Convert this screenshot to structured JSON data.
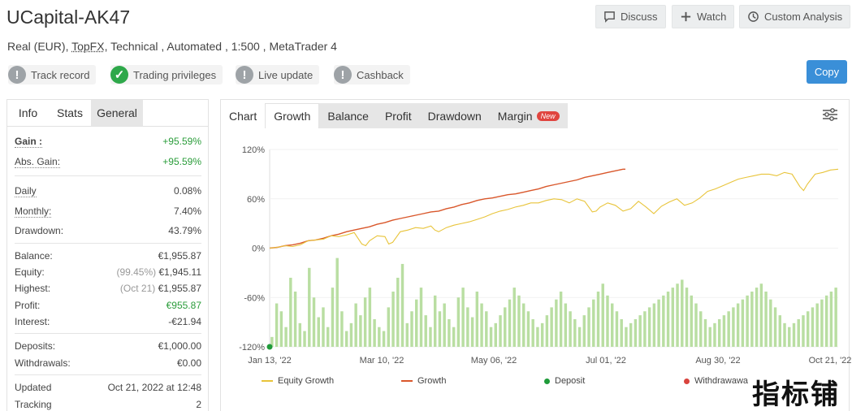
{
  "header": {
    "title": "UCapital-AK47",
    "account_type": "Real (EUR),",
    "broker": "TopFX",
    "details": ", Technical , Automated , 1:500 , MetaTrader 4"
  },
  "actions": {
    "discuss": "Discuss",
    "watch": "Watch",
    "custom_analysis": "Custom Analysis",
    "copy": "Copy"
  },
  "badges": [
    {
      "label": "Track record",
      "status": "grey"
    },
    {
      "label": "Trading privileges",
      "status": "green"
    },
    {
      "label": "Live update",
      "status": "grey"
    },
    {
      "label": "Cashback",
      "status": "grey"
    }
  ],
  "left_tabs": [
    "Info",
    "Stats",
    "General"
  ],
  "stats": {
    "gain": {
      "label": "Gain :",
      "value": "+95.59%"
    },
    "abs_gain": {
      "label": "Abs. Gain:",
      "value": "+95.59%"
    },
    "daily": {
      "label": "Daily",
      "value": "0.08%"
    },
    "monthly": {
      "label": "Monthly:",
      "value": "7.40%"
    },
    "drawdown": {
      "label": "Drawdown:",
      "value": "43.79%"
    },
    "balance": {
      "label": "Balance:",
      "value": "€1,955.87"
    },
    "equity": {
      "label": "Equity:",
      "note": "(99.45%)",
      "value": "€1,945.11"
    },
    "highest": {
      "label": "Highest:",
      "note": "(Oct 21)",
      "value": "€1,955.87"
    },
    "profit": {
      "label": "Profit:",
      "value": "€955.87"
    },
    "interest": {
      "label": "Interest:",
      "value": "-€21.94"
    },
    "deposits": {
      "label": "Deposits:",
      "value": "€1,000.00"
    },
    "withdrawals": {
      "label": "Withdrawals:",
      "value": "€0.00"
    },
    "updated": {
      "label": "Updated",
      "value": "Oct 21, 2022 at 12:48"
    },
    "tracking": {
      "label": "Tracking",
      "value": "2"
    }
  },
  "chart_tabs": {
    "chart": "Chart",
    "growth": "Growth",
    "balance": "Balance",
    "profit": "Profit",
    "drawdown": "Drawdown",
    "margin": "Margin",
    "new_badge": "New"
  },
  "legend": {
    "equity_growth": "Equity Growth",
    "growth": "Growth",
    "deposit": "Deposit",
    "withdrawals": "Withdrawawa"
  },
  "watermark": "指标铺",
  "chart_data": {
    "type": "line",
    "x_labels": [
      "Jan 13, '22",
      "Mar 10, '22",
      "May 06, '22",
      "Jul 01, '22",
      "Aug 30, '22",
      "Oct 21, '22"
    ],
    "extra_x_label": "Oc",
    "y_ticks": [
      "120%",
      "60%",
      "0%",
      "-60%",
      "-120%"
    ],
    "ylim": [
      -120,
      120
    ],
    "colors": {
      "growth": "#d9572b",
      "equity": "#e8c43a",
      "bars": "#b9dea2",
      "deposit": "#1f9b3a",
      "withdrawal": "#d9433d"
    },
    "series": [
      {
        "name": "Growth",
        "points": [
          [
            0,
            0
          ],
          [
            10,
            1
          ],
          [
            20,
            3
          ],
          [
            30,
            4
          ],
          [
            40,
            6
          ],
          [
            50,
            9
          ],
          [
            60,
            10
          ],
          [
            70,
            12
          ],
          [
            80,
            15
          ],
          [
            90,
            17
          ],
          [
            100,
            20
          ],
          [
            110,
            22
          ],
          [
            120,
            24
          ],
          [
            130,
            26
          ],
          [
            140,
            29
          ],
          [
            150,
            31
          ],
          [
            160,
            34
          ],
          [
            170,
            36
          ],
          [
            180,
            38
          ],
          [
            190,
            40
          ],
          [
            200,
            42
          ],
          [
            210,
            44
          ],
          [
            220,
            45
          ],
          [
            230,
            48
          ],
          [
            240,
            50
          ],
          [
            250,
            53
          ],
          [
            260,
            55
          ],
          [
            270,
            58
          ],
          [
            280,
            60
          ],
          [
            290,
            61
          ],
          [
            300,
            63
          ],
          [
            310,
            65
          ],
          [
            320,
            66
          ],
          [
            330,
            68
          ],
          [
            340,
            70
          ],
          [
            350,
            72
          ],
          [
            360,
            75
          ],
          [
            370,
            77
          ],
          [
            380,
            79
          ],
          [
            390,
            81
          ],
          [
            400,
            83
          ],
          [
            410,
            86
          ],
          [
            420,
            88
          ],
          [
            430,
            90
          ],
          [
            440,
            92
          ],
          [
            450,
            94
          ],
          [
            460,
            96
          ],
          [
            463,
            96
          ]
        ]
      },
      {
        "name": "Equity Growth",
        "points": [
          [
            0,
            0
          ],
          [
            10,
            1
          ],
          [
            20,
            3
          ],
          [
            30,
            2
          ],
          [
            40,
            4
          ],
          [
            50,
            9
          ],
          [
            60,
            10
          ],
          [
            70,
            11
          ],
          [
            80,
            15
          ],
          [
            90,
            14
          ],
          [
            100,
            16
          ],
          [
            110,
            19
          ],
          [
            120,
            5
          ],
          [
            125,
            3
          ],
          [
            130,
            9
          ],
          [
            140,
            15
          ],
          [
            150,
            14
          ],
          [
            155,
            5
          ],
          [
            160,
            7
          ],
          [
            170,
            20
          ],
          [
            180,
            22
          ],
          [
            190,
            25
          ],
          [
            200,
            24
          ],
          [
            210,
            27
          ],
          [
            215,
            22
          ],
          [
            220,
            20
          ],
          [
            230,
            25
          ],
          [
            240,
            28
          ],
          [
            250,
            30
          ],
          [
            260,
            32
          ],
          [
            270,
            35
          ],
          [
            280,
            38
          ],
          [
            290,
            42
          ],
          [
            300,
            45
          ],
          [
            310,
            47
          ],
          [
            320,
            50
          ],
          [
            330,
            52
          ],
          [
            340,
            55
          ],
          [
            350,
            55
          ],
          [
            360,
            58
          ],
          [
            370,
            60
          ],
          [
            380,
            59
          ],
          [
            390,
            55
          ],
          [
            400,
            60
          ],
          [
            410,
            57
          ],
          [
            420,
            44
          ],
          [
            425,
            45
          ],
          [
            430,
            50
          ],
          [
            440,
            55
          ],
          [
            450,
            52
          ],
          [
            460,
            45
          ],
          [
            470,
            48
          ],
          [
            480,
            57
          ],
          [
            490,
            50
          ],
          [
            500,
            42
          ],
          [
            510,
            51
          ],
          [
            520,
            56
          ],
          [
            530,
            60
          ],
          [
            540,
            52
          ],
          [
            550,
            55
          ],
          [
            560,
            61
          ],
          [
            570,
            69
          ],
          [
            580,
            72
          ],
          [
            590,
            76
          ],
          [
            600,
            80
          ],
          [
            610,
            84
          ],
          [
            620,
            86
          ],
          [
            630,
            88
          ],
          [
            640,
            90
          ],
          [
            650,
            90
          ],
          [
            660,
            88
          ],
          [
            670,
            92
          ],
          [
            680,
            90
          ],
          [
            690,
            75
          ],
          [
            695,
            70
          ],
          [
            700,
            78
          ],
          [
            710,
            90
          ],
          [
            720,
            92
          ],
          [
            730,
            95
          ],
          [
            740,
            96
          ]
        ]
      }
    ],
    "bars": [
      5,
      22,
      18,
      10,
      35,
      28,
      12,
      8,
      40,
      25,
      15,
      20,
      10,
      30,
      45,
      18,
      8,
      12,
      22,
      16,
      25,
      30,
      14,
      10,
      8,
      20,
      28,
      35,
      42,
      12,
      18,
      24,
      30,
      16,
      10,
      26,
      18,
      22,
      14,
      10,
      25,
      30,
      20,
      15,
      28,
      22,
      18,
      10,
      12,
      16,
      20,
      24,
      30,
      26,
      22,
      18,
      14,
      10,
      12,
      16,
      20,
      24,
      28,
      22,
      18,
      14,
      10,
      16,
      20,
      24,
      28,
      32,
      26,
      22,
      18,
      14,
      10,
      12,
      14,
      16,
      18,
      20,
      22,
      24,
      26,
      28,
      30,
      32,
      34,
      30,
      26,
      22,
      18,
      14,
      10,
      12,
      14,
      16,
      18,
      20,
      22,
      24,
      26,
      28,
      30,
      32,
      28,
      24,
      20,
      16,
      12,
      10,
      12,
      14,
      16,
      18,
      20,
      22,
      24,
      26,
      28,
      30
    ],
    "deposit_point": [
      0,
      -120
    ]
  }
}
